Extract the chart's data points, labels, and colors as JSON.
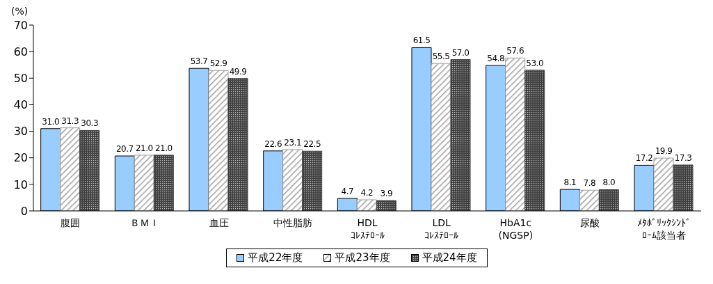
{
  "chart_data": {
    "type": "bar",
    "ylabel": "(%)",
    "categories": [
      "腹囲",
      "ＢＭＩ",
      "血圧",
      "中性脂肪",
      "HDL\nｺﾚｽﾃﾛｰﾙ",
      "LDL\nｺﾚｽﾃﾛｰﾙ",
      "HbA1c\n(NGSP)",
      "尿酸",
      "ﾒﾀﾎﾞﾘｯｸｼﾝﾄﾞﾛｰﾑ該当者"
    ],
    "series": [
      {
        "name": "平成22年度",
        "color": "#99ccff",
        "values": [
          31.0,
          20.7,
          53.7,
          22.6,
          4.7,
          61.5,
          54.8,
          8.1,
          17.2
        ],
        "value_labels": [
          "31.0",
          "20.7",
          "53.7",
          "22.6",
          "4.7",
          "61.5",
          "54.8",
          "8.1",
          "17.2"
        ]
      },
      {
        "name": "平成23年度",
        "color": "#a0a0a0",
        "values": [
          31.3,
          21.0,
          52.9,
          23.1,
          4.2,
          55.5,
          57.6,
          7.8,
          19.9
        ],
        "value_labels": [
          "31.3",
          "21.0",
          "52.9",
          "23.1",
          "4.2",
          "55.5",
          "57.6",
          "7.8",
          "19.9"
        ]
      },
      {
        "name": "平成24年度",
        "color": "#404040",
        "values": [
          30.3,
          21.0,
          49.9,
          22.5,
          3.9,
          57.0,
          53.0,
          8.0,
          17.3
        ],
        "value_labels": [
          "30.3",
          "21.0",
          "49.9",
          "22.5",
          "3.9",
          "57.0",
          "53.0",
          "8.0",
          "17.3"
        ]
      }
    ],
    "ylim": [
      0,
      70
    ],
    "yticks": [
      0,
      10,
      20,
      30,
      40,
      50,
      60,
      70
    ],
    "grid": false,
    "legend": "bottom"
  }
}
